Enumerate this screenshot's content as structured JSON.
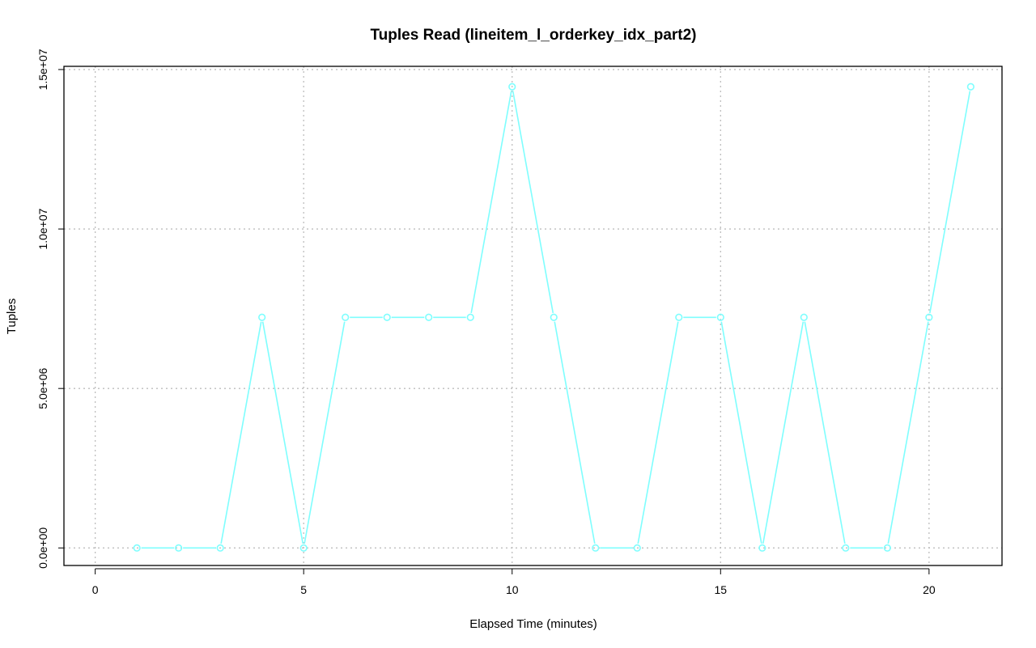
{
  "chart_data": {
    "type": "line",
    "title": "Tuples Read (lineitem_l_orderkey_idx_part2)",
    "xlabel": "Elapsed Time (minutes)",
    "ylabel": "Tuples",
    "xlim": [
      -0.75,
      21.75
    ],
    "ylim": [
      -550000,
      15100000
    ],
    "xticks": [
      0,
      5,
      10,
      15,
      20
    ],
    "yticks": [
      0,
      5000000,
      10000000,
      15000000
    ],
    "ytick_labels": [
      "0.0e+00",
      "5.0e+06",
      "1.0e+07",
      "1.5e+07"
    ],
    "grid": true,
    "series": [
      {
        "color": "#7ffefe",
        "marker": "circle",
        "x": [
          1,
          2,
          3,
          4,
          5,
          6,
          7,
          8,
          9,
          10,
          11,
          12,
          13,
          14,
          15,
          16,
          17,
          18,
          19,
          20,
          21
        ],
        "y": [
          0,
          0,
          0,
          7230000,
          0,
          7230000,
          7230000,
          7230000,
          7230000,
          14460000,
          7230000,
          0,
          0,
          7230000,
          7230000,
          0,
          7230000,
          0,
          0,
          7230000,
          14460000
        ]
      }
    ]
  }
}
